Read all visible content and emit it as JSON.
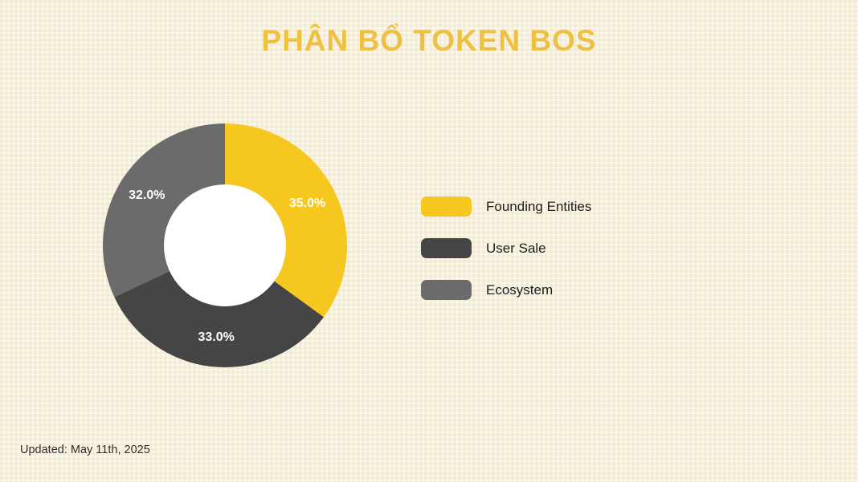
{
  "page": {
    "title": "PHÂN BỔ TOKEN BOS",
    "updated_label": "Updated: May 11th, 2025"
  },
  "chart_data": {
    "type": "pie",
    "subtype": "donut",
    "title": "PHÂN BỔ TOKEN BOS",
    "categories": [
      "Founding Entities",
      "User Sale",
      "Ecosystem"
    ],
    "values": [
      35.0,
      33.0,
      32.0
    ],
    "slice_labels": [
      "35.0%",
      "33.0%",
      "32.0%"
    ],
    "colors": [
      "#F6C71F",
      "#454545",
      "#6B6B6B"
    ],
    "start_angle_deg": 0,
    "direction": "clockwise",
    "inner_radius_ratio": 0.5,
    "label_radius_ratio": 0.757,
    "label_color": "#FFFFFF",
    "legend_position": "right"
  },
  "legend": {
    "items": [
      {
        "label": "Founding Entities",
        "color": "#F6C71F"
      },
      {
        "label": "User Sale",
        "color": "#454545"
      },
      {
        "label": "Ecosystem",
        "color": "#6B6B6B"
      }
    ]
  },
  "theme": {
    "title_color": "#EFC143",
    "background": "#FFFDF8",
    "dot_color": "#EEE4C6",
    "hole_color": "#FFFFFF",
    "text_color": "#2E2E2E"
  }
}
